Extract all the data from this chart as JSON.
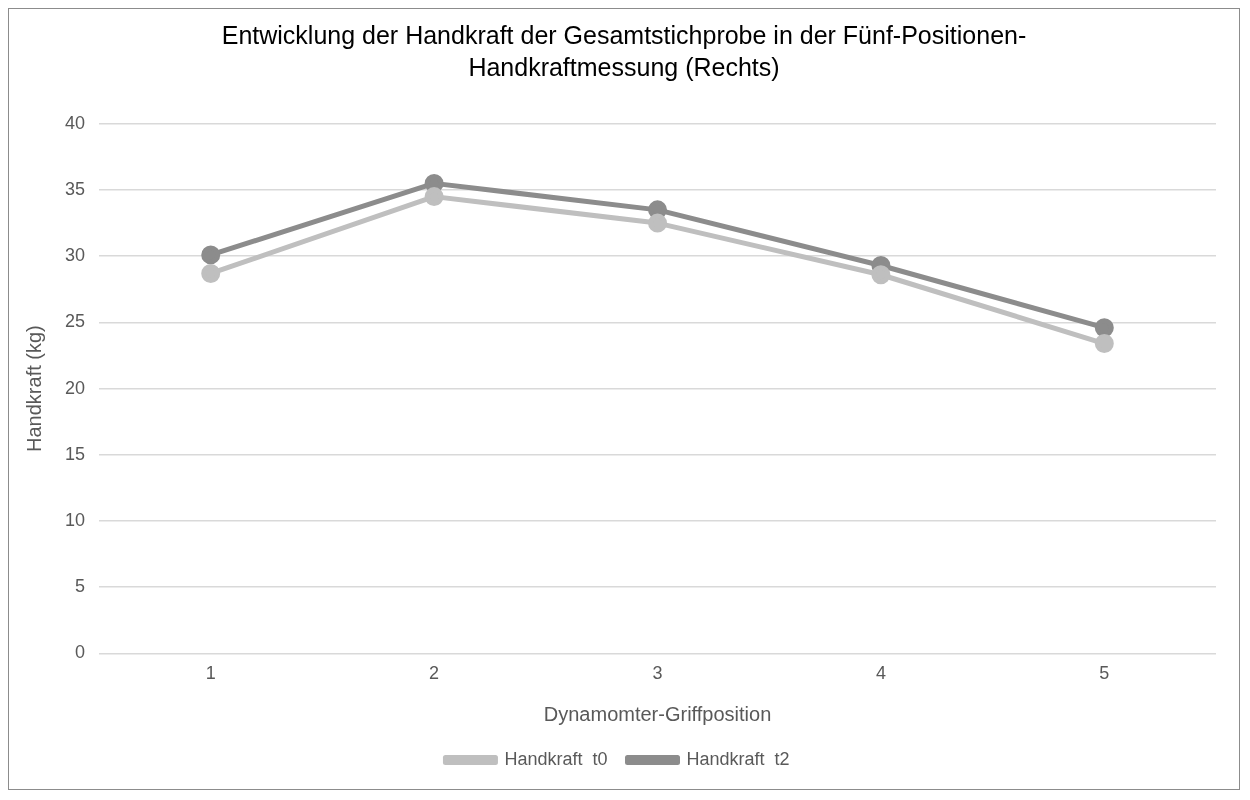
{
  "chart_data": {
    "type": "line",
    "title": "Entwicklung der Handkraft der Gesamtstichprobe in der Fünf-Positionen-Handkraftmessung (Rechts)",
    "xlabel": "Dynamomter-Griffposition",
    "ylabel": "Handkraft (kg)",
    "categories": [
      "1",
      "2",
      "3",
      "4",
      "5"
    ],
    "series": [
      {
        "name": "Handkraft  t0",
        "color": "#bfbfbf",
        "values": [
          28.7,
          34.5,
          32.5,
          28.6,
          23.4
        ]
      },
      {
        "name": "Handkraft  t2",
        "color": "#8c8c8c",
        "values": [
          30.1,
          35.5,
          33.5,
          29.3,
          24.6
        ]
      }
    ],
    "ylim": [
      0,
      40
    ],
    "yticks": [
      0,
      5,
      10,
      15,
      20,
      25,
      30,
      35,
      40
    ],
    "grid": "y",
    "legend": "bottom",
    "marker": "circle",
    "line_style": "solid"
  }
}
